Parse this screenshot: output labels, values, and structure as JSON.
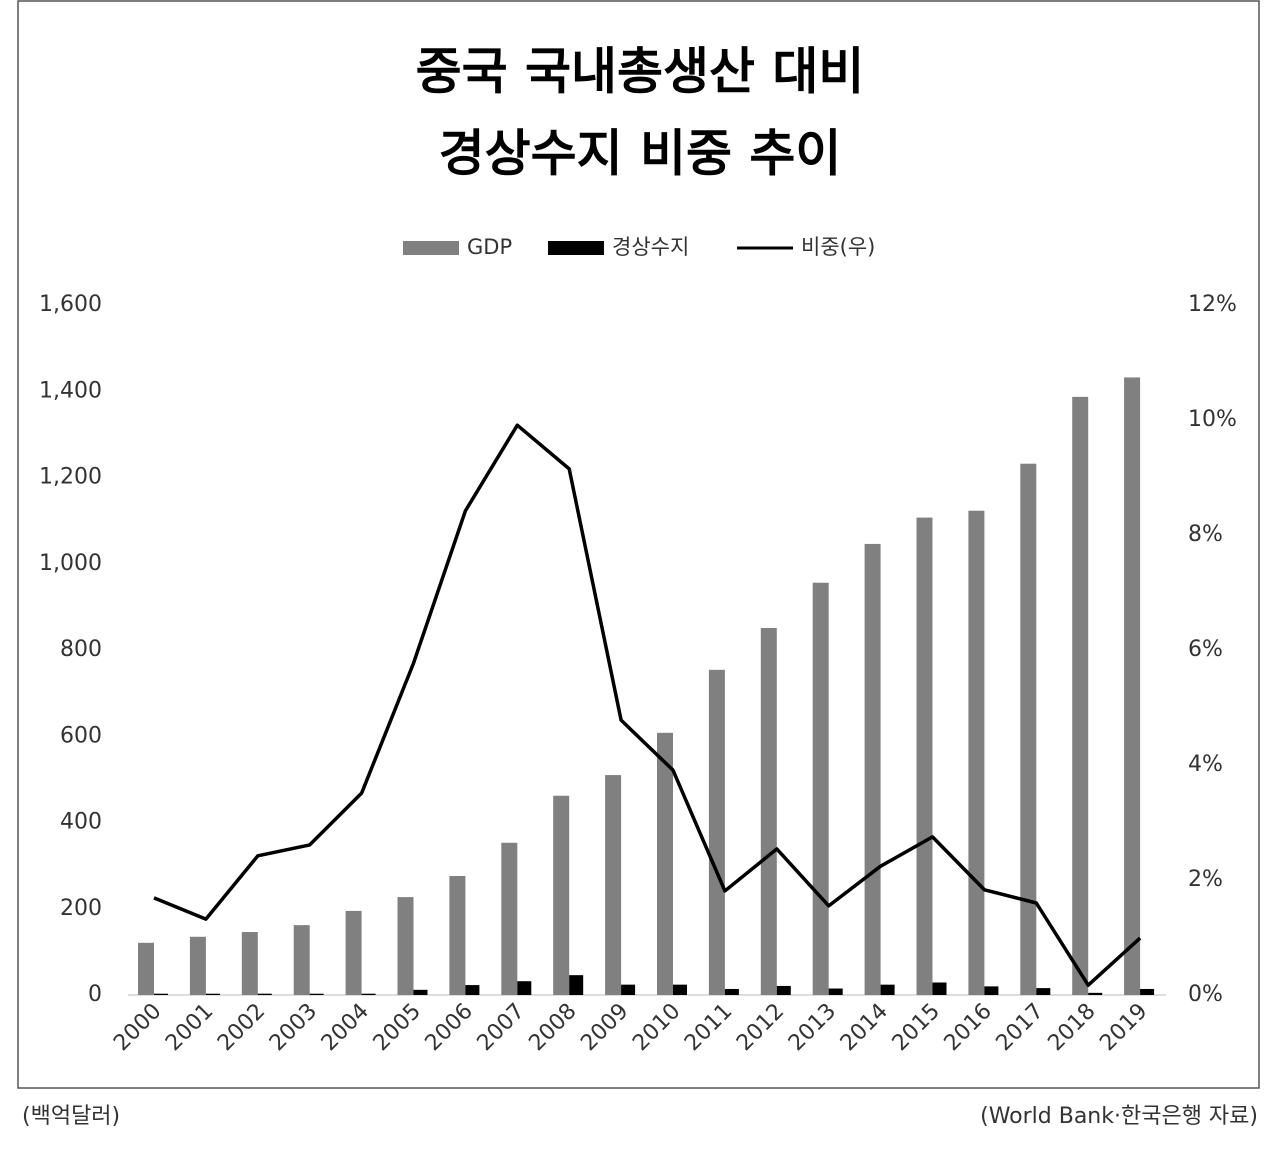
{
  "chart_data": {
    "type": "bar-line",
    "title": [
      "중국 국내총생산 대비",
      "경상수지 비중 추이"
    ],
    "unit_note": "(백억달러)",
    "source": "(World Bank·한국은행 자료)",
    "categories": [
      "2000",
      "2001",
      "2002",
      "2003",
      "2004",
      "2005",
      "2006",
      "2007",
      "2008",
      "2009",
      "2010",
      "2011",
      "2012",
      "2013",
      "2014",
      "2015",
      "2016",
      "2017",
      "2018",
      "2019"
    ],
    "series": [
      {
        "name": "GDP",
        "type": "bar",
        "color": "#808080",
        "values": [
          121,
          135,
          146,
          162,
          195,
          227,
          276,
          353,
          462,
          510,
          608,
          754,
          851,
          956,
          1046,
          1107,
          1123,
          1232,
          1387,
          1432
        ]
      },
      {
        "name": "경상수지",
        "type": "bar",
        "color": "#000000",
        "values": [
          3,
          3,
          3,
          3,
          3,
          12,
          23,
          32,
          46,
          24,
          24,
          14,
          21,
          15,
          24,
          29,
          20,
          16,
          5,
          14
        ]
      },
      {
        "name": "비중(우)",
        "type": "line",
        "axis": "y2",
        "color": "#000000",
        "values": [
          1.69,
          1.32,
          2.42,
          2.61,
          3.51,
          5.77,
          8.42,
          9.91,
          9.15,
          4.78,
          3.91,
          1.81,
          2.54,
          1.55,
          2.24,
          2.75,
          1.83,
          1.6,
          0.17,
          0.99
        ]
      }
    ],
    "ylim": [
      0,
      1600
    ],
    "yticks": [
      0,
      200,
      400,
      600,
      800,
      {
        "value": 1000,
        "label": "1,000"
      },
      {
        "value": 1200,
        "label": "1,200"
      },
      {
        "value": 1400,
        "label": "1,400"
      },
      {
        "value": 1600,
        "label": "1,600"
      }
    ],
    "y2lim": [
      0,
      12
    ],
    "y2ticks": [
      {
        "value": 0,
        "label": "0%"
      },
      {
        "value": 2,
        "label": "2%"
      },
      {
        "value": 4,
        "label": "4%"
      },
      {
        "value": 6,
        "label": "6%"
      },
      {
        "value": 8,
        "label": "8%"
      },
      {
        "value": 10,
        "label": "10%"
      },
      {
        "value": 12,
        "label": "12%"
      }
    ],
    "grid": false,
    "legend": "top"
  }
}
